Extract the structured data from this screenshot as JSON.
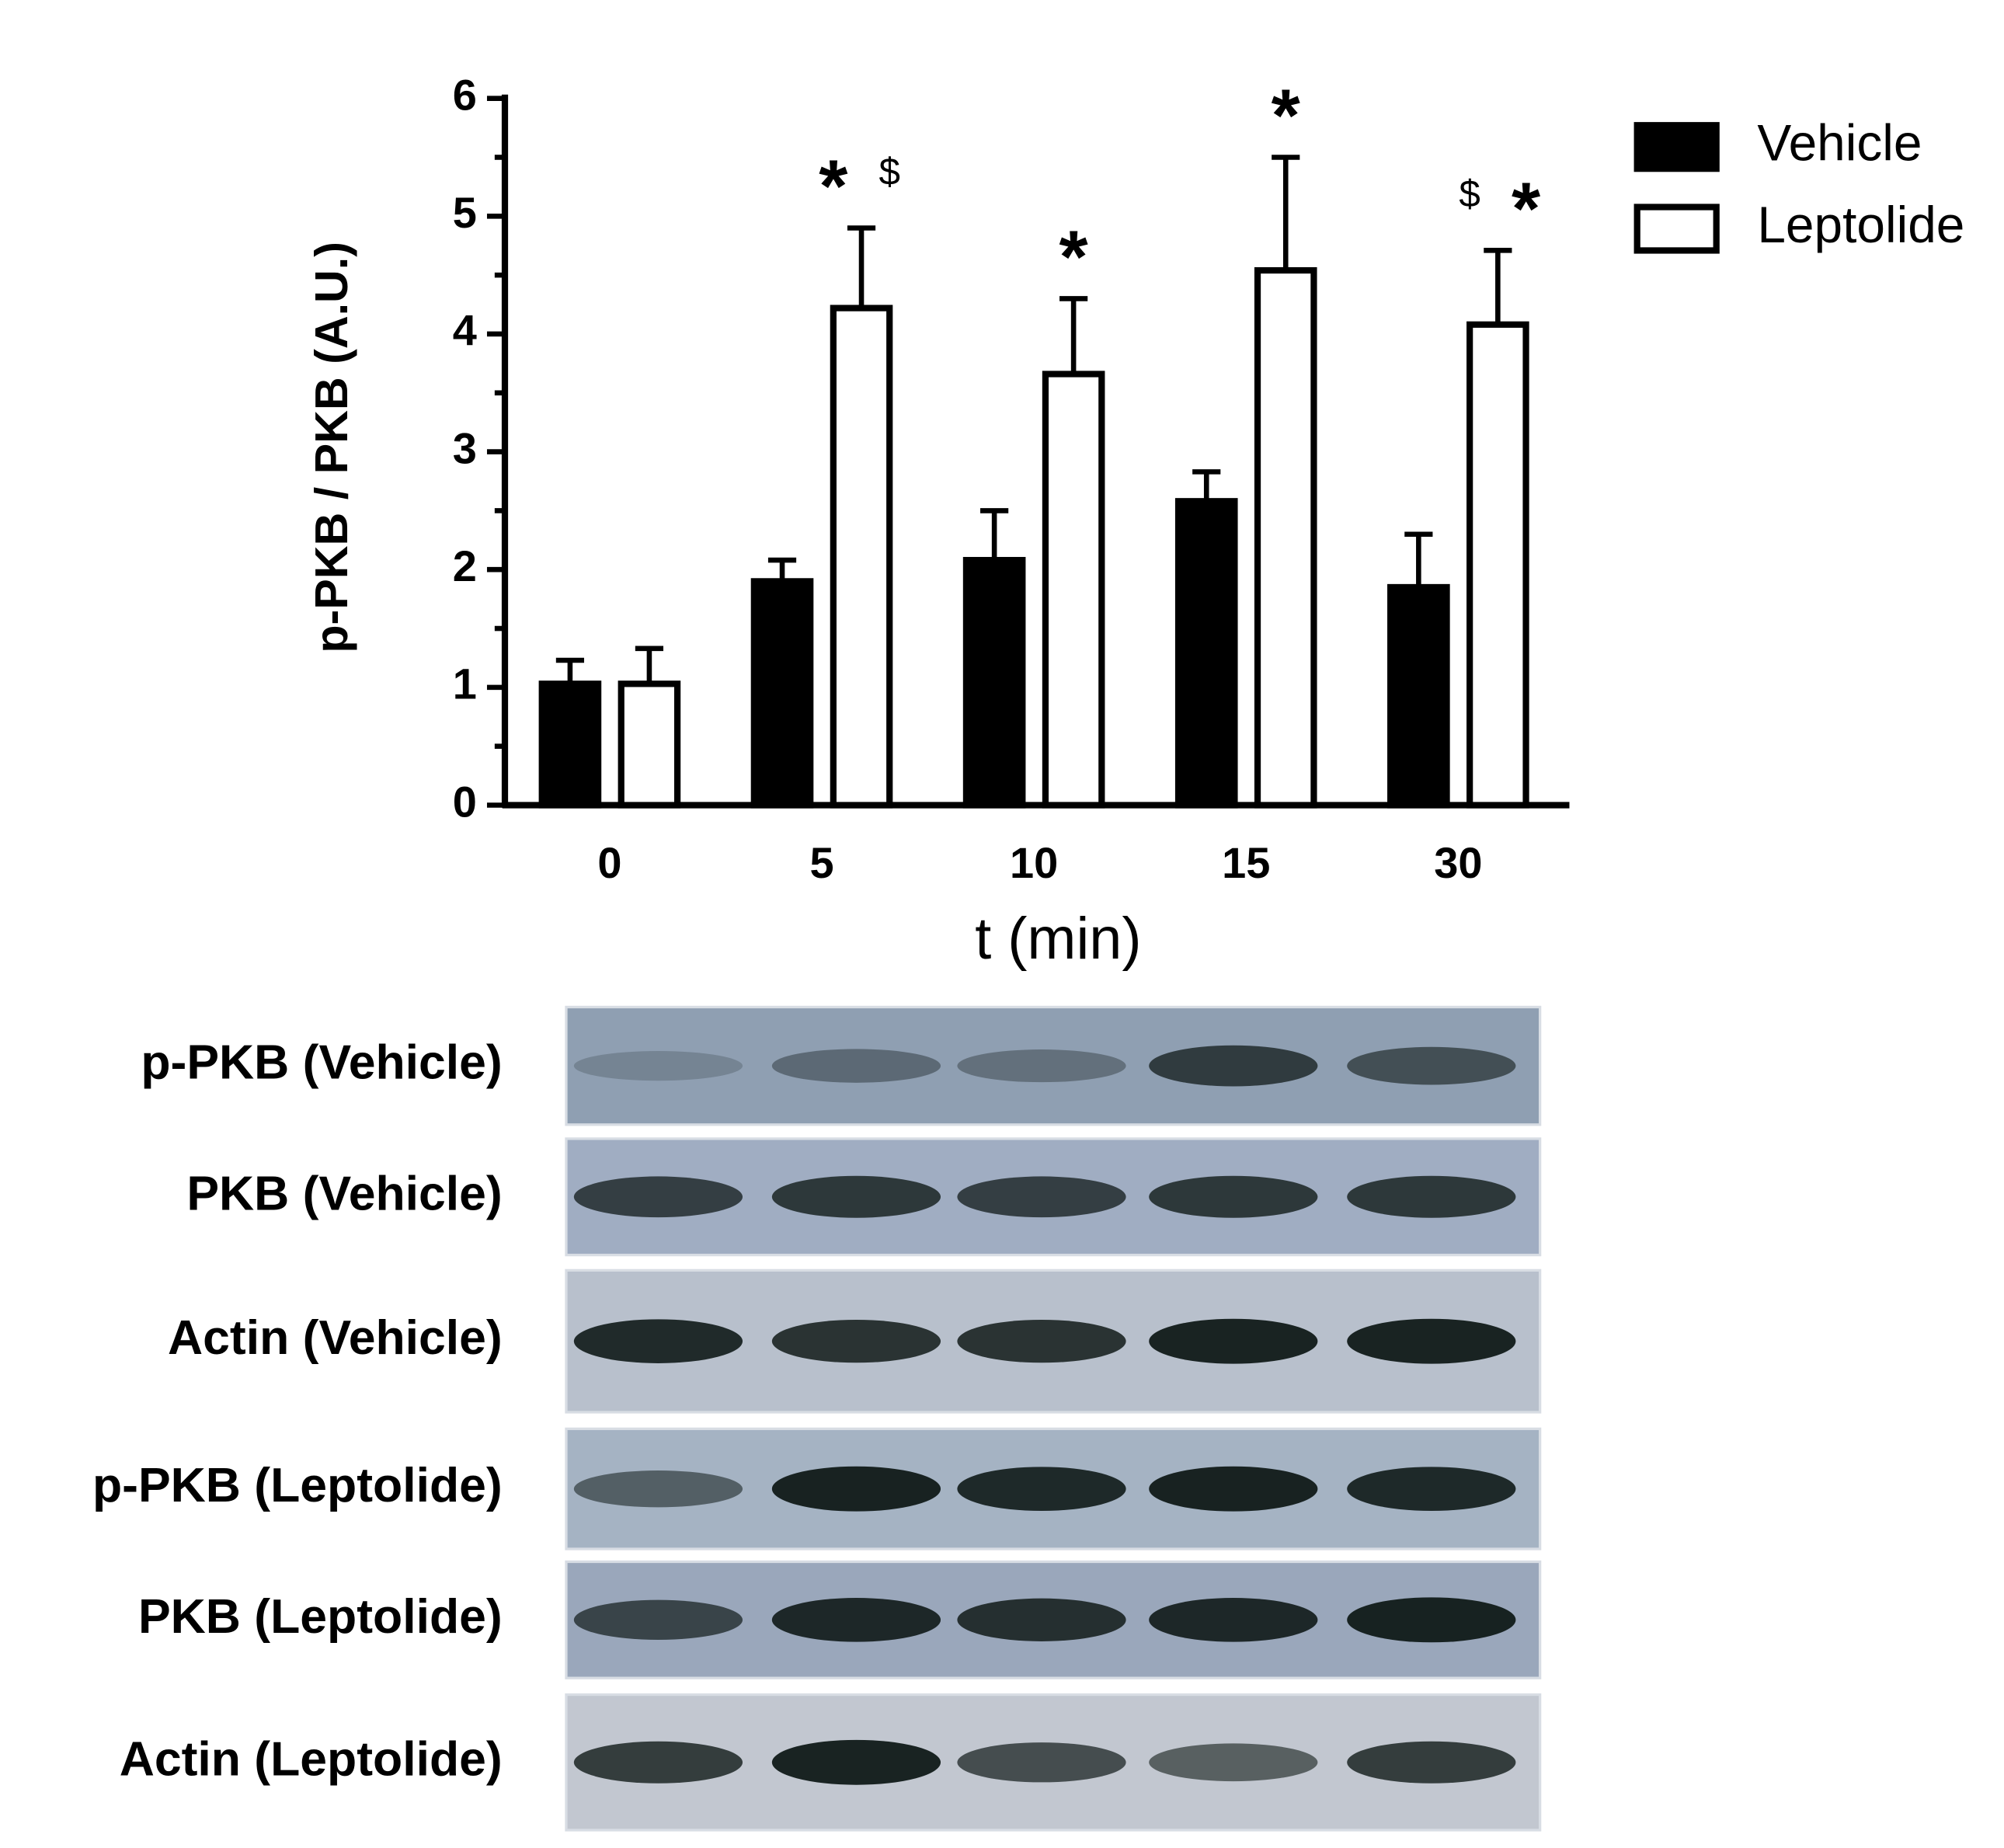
{
  "chart_data": {
    "type": "bar",
    "y_label": "p-PKB / PKB (A.U.)",
    "x_label": "t (min)",
    "categories": [
      "0",
      "5",
      "10",
      "15",
      "30"
    ],
    "series": [
      {
        "name": "Vehicle",
        "color": "#000000",
        "values": [
          1.03,
          1.9,
          2.08,
          2.58,
          1.85
        ],
        "errors": [
          0.2,
          0.18,
          0.42,
          0.25,
          0.45
        ]
      },
      {
        "name": "Leptolide",
        "color": "#ffffff",
        "values": [
          1.03,
          4.22,
          3.66,
          4.54,
          4.08
        ],
        "errors": [
          0.3,
          0.68,
          0.64,
          0.96,
          0.63
        ]
      }
    ],
    "annotations": [
      [],
      [
        "*",
        "$"
      ],
      [
        "*"
      ],
      [
        "*"
      ],
      [
        "$",
        "*"
      ]
    ],
    "ylim": [
      0,
      6
    ],
    "yticks": [
      0,
      1,
      2,
      3,
      4,
      5,
      6
    ],
    "legend": "upper right"
  },
  "blot_labels": [
    "p-PKB (Vehicle)",
    "PKB (Vehicle)",
    "Actin (Vehicle)",
    "p-PKB (Leptolide)",
    "PKB (Leptolide)",
    "Actin (Leptolide)"
  ]
}
